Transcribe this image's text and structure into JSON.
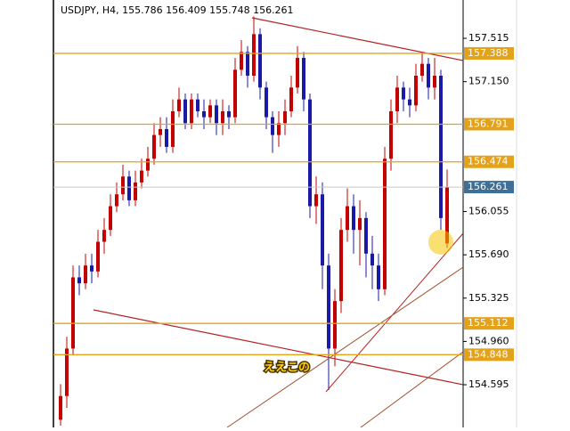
{
  "chart_data": {
    "type": "candlestick",
    "title": "USDJPY, H4, 155.786 156.409 155.748 156.261",
    "open": [
      154.3,
      154.5,
      154.9,
      155.5,
      155.45,
      155.6,
      155.55,
      155.8,
      155.9,
      156.1,
      156.2,
      156.35,
      156.15,
      156.3,
      156.4,
      156.5,
      156.7,
      156.75,
      156.6,
      156.9,
      157.0,
      156.8,
      157.0,
      156.9,
      156.85,
      156.95,
      156.8,
      156.9,
      156.85,
      157.25,
      157.4,
      157.2,
      157.55,
      157.1,
      156.85,
      156.7,
      156.8,
      156.9,
      157.1,
      157.35,
      157.0,
      156.1,
      156.2,
      155.6,
      154.9,
      155.3,
      155.9,
      156.1,
      155.9,
      156.0,
      155.7,
      155.6,
      155.4,
      156.5,
      156.9,
      157.1,
      157.0,
      156.95,
      157.2,
      157.3,
      157.1,
      157.2,
      155.786
    ],
    "high": [
      154.6,
      155.0,
      155.6,
      155.6,
      155.7,
      155.7,
      155.9,
      156.0,
      156.2,
      156.3,
      156.45,
      156.4,
      156.4,
      156.5,
      156.6,
      156.8,
      156.85,
      156.85,
      157.0,
      157.1,
      157.05,
      157.05,
      157.05,
      157.0,
      157.0,
      157.0,
      157.0,
      156.95,
      157.35,
      157.5,
      157.45,
      157.7,
      157.6,
      157.15,
      156.9,
      156.9,
      157.0,
      157.2,
      157.45,
      157.4,
      157.05,
      156.35,
      156.3,
      155.7,
      155.4,
      156.0,
      156.25,
      156.2,
      156.15,
      156.05,
      155.85,
      155.7,
      156.6,
      157.0,
      157.2,
      157.15,
      157.1,
      157.3,
      157.4,
      157.35,
      157.35,
      157.25,
      156.409
    ],
    "low": [
      154.25,
      154.4,
      154.85,
      155.35,
      155.4,
      155.45,
      155.5,
      155.7,
      155.85,
      156.05,
      156.15,
      156.1,
      156.1,
      156.25,
      156.35,
      156.45,
      156.6,
      156.55,
      156.55,
      156.85,
      156.75,
      156.75,
      156.85,
      156.75,
      156.8,
      156.7,
      156.7,
      156.75,
      156.8,
      157.2,
      157.1,
      157.15,
      157.0,
      156.75,
      156.55,
      156.6,
      156.7,
      156.85,
      157.05,
      156.9,
      156.0,
      155.95,
      155.4,
      154.55,
      154.75,
      155.2,
      155.8,
      155.7,
      155.6,
      155.5,
      155.4,
      155.3,
      155.35,
      156.4,
      156.8,
      156.9,
      156.85,
      156.9,
      157.15,
      157.0,
      157.0,
      155.9,
      155.748
    ],
    "close": [
      154.5,
      154.9,
      155.5,
      155.45,
      155.6,
      155.55,
      155.8,
      155.9,
      156.1,
      156.2,
      156.35,
      156.15,
      156.3,
      156.4,
      156.5,
      156.7,
      156.75,
      156.6,
      156.9,
      157.0,
      156.8,
      157.0,
      156.9,
      156.85,
      156.95,
      156.8,
      156.9,
      156.85,
      157.25,
      157.4,
      157.2,
      157.55,
      157.1,
      156.85,
      156.7,
      156.8,
      156.9,
      157.1,
      157.35,
      157.0,
      156.1,
      156.2,
      155.6,
      154.9,
      155.3,
      155.9,
      156.1,
      155.9,
      156.0,
      155.7,
      155.6,
      155.4,
      156.5,
      156.9,
      157.1,
      157.0,
      156.95,
      157.2,
      157.3,
      157.1,
      157.2,
      156.0,
      156.261
    ],
    "up_color": "#c40000",
    "down_color": "#1a1aa6",
    "ylim": [
      154.235,
      157.838
    ],
    "yticks": [
      157.515,
      {
        "value": 157.15,
        "label": "157.150"
      },
      156.055,
      {
        "value": 155.69,
        "label": "155.690"
      },
      155.325,
      {
        "value": 154.96,
        "label": "154.960"
      },
      154.595
    ],
    "levels": [
      157.388,
      156.791,
      156.474,
      155.112,
      154.848
    ],
    "level_color": "#e3a21a",
    "current_price": 156.261,
    "current_color": "#3e6f98",
    "annotation": "ええこの"
  }
}
